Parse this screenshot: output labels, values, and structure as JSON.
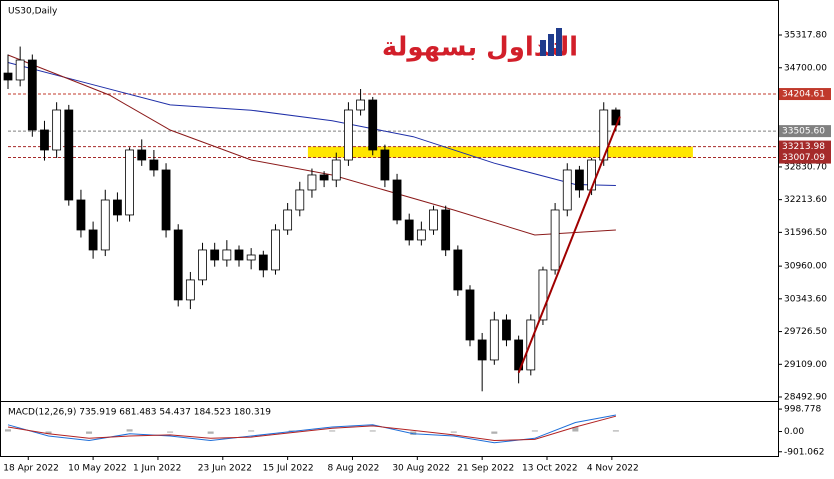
{
  "symbol": "US30,Daily",
  "watermark": "التداول بسهولة",
  "chart_data": [
    {
      "type": "candlestick",
      "color_up": "#ffffff",
      "color_down": "#000000",
      "xlim": [
        0,
        190
      ],
      "ylim": [
        28436,
        35827
      ],
      "yticks": [
        {
          "value": 35317.8,
          "label": "35317.80"
        },
        {
          "value": 34700,
          "label": "34700.00"
        },
        {
          "value": 32830.7,
          "label": "32830.70"
        },
        {
          "value": 32213.6,
          "label": "32213.60"
        },
        {
          "value": 31596.5,
          "label": "31596.50"
        },
        {
          "value": 30960,
          "label": "30960.00"
        },
        {
          "value": 30343.6,
          "label": "30343.60"
        },
        {
          "value": 29726.5,
          "label": "29726.50"
        },
        {
          "value": 29109,
          "label": "29109.00"
        },
        {
          "value": 28492.9,
          "label": "28492.90"
        }
      ],
      "x": [
        0,
        3,
        6,
        9,
        12,
        15,
        18,
        21,
        24,
        27,
        30,
        33,
        36,
        39,
        42,
        45,
        48,
        51,
        54,
        57,
        60,
        63,
        66,
        69,
        72,
        75,
        78,
        81,
        84,
        87,
        90,
        93,
        96,
        99,
        102,
        105,
        108,
        111,
        114,
        117,
        120,
        123,
        126,
        129,
        132,
        135,
        138,
        141,
        144,
        147,
        150
      ],
      "open": [
        34600,
        34470,
        34846,
        33527,
        33150,
        33904,
        32207,
        31642,
        31265,
        32207,
        31925,
        33150,
        32961,
        32773,
        31642,
        30323,
        30700,
        31265,
        31076,
        31265,
        31076,
        31170,
        30888,
        31642,
        32019,
        32396,
        32679,
        32584,
        32961,
        33904,
        34092,
        33150,
        32584,
        31830,
        31453,
        31642,
        32019,
        31265,
        30511,
        29568,
        29191,
        29945,
        29568,
        29003,
        29945,
        30888,
        32019,
        32773,
        32396,
        32961,
        33904
      ],
      "high": [
        34950,
        35100,
        34950,
        33700,
        34050,
        34000,
        32400,
        31800,
        32400,
        32350,
        33200,
        33350,
        33150,
        32900,
        31750,
        30850,
        31400,
        31400,
        31450,
        31350,
        31300,
        31250,
        31750,
        32150,
        32550,
        32800,
        32750,
        33100,
        34050,
        34300,
        34150,
        33250,
        32700,
        31950,
        31800,
        32100,
        32100,
        31350,
        30600,
        29700,
        30100,
        30050,
        29650,
        30050,
        30950,
        32150,
        32900,
        32850,
        33000,
        34050,
        33950
      ],
      "low": [
        34300,
        34350,
        33400,
        32950,
        33000,
        32100,
        31500,
        31100,
        31150,
        31800,
        31800,
        32850,
        32650,
        31500,
        30200,
        30150,
        30600,
        30950,
        30950,
        30950,
        30900,
        30750,
        30800,
        31550,
        31900,
        32250,
        32450,
        32450,
        32850,
        33800,
        33050,
        32450,
        31750,
        31350,
        31350,
        31550,
        31150,
        30400,
        29450,
        28600,
        29100,
        29450,
        28750,
        28900,
        29850,
        30800,
        31900,
        32250,
        32300,
        32850,
        33500
      ],
      "close": [
        34470,
        34846,
        33527,
        33150,
        33904,
        32207,
        31642,
        31265,
        32207,
        31925,
        33150,
        32961,
        32773,
        31642,
        30323,
        30700,
        31265,
        31076,
        31265,
        31076,
        31170,
        30888,
        31642,
        32019,
        32396,
        32679,
        32584,
        32961,
        33904,
        34092,
        33150,
        32584,
        31830,
        31453,
        31642,
        32019,
        31265,
        30511,
        29568,
        29191,
        29945,
        29568,
        29003,
        29945,
        30888,
        32019,
        32773,
        32396,
        32961,
        33904,
        33622
      ],
      "series": [
        {
          "color": "#1f2fa8",
          "x": [
            0,
            20,
            40,
            60,
            80,
            100,
            120,
            140,
            150
          ],
          "values": [
            34800,
            34400,
            34000,
            33900,
            33700,
            33400,
            32900,
            32500,
            32480
          ]
        },
        {
          "color": "#8b1a1a",
          "x": [
            0,
            25,
            40,
            60,
            80,
            110,
            130,
            150
          ],
          "values": [
            34940,
            34187,
            33527,
            32961,
            32679,
            32019,
            31547,
            31642
          ]
        }
      ],
      "levels": [
        {
          "value": 34204.61,
          "label": "34204.61",
          "color": "#c0392b"
        },
        {
          "value": 33505.6,
          "label": "33505.60",
          "color": "#808080"
        },
        {
          "value": 33213.98,
          "label": "33213.98",
          "color": "#a52a2a"
        },
        {
          "value": 33007.09,
          "label": "33007.09",
          "color": "#a52a2a"
        }
      ],
      "zone": {
        "x": [
          74,
          169
        ],
        "y": [
          33007.09,
          33213.98
        ],
        "color": "#ffe600"
      },
      "trendline": {
        "x": [
          126,
          151
        ],
        "y": [
          28950,
          33780
        ],
        "color": "#a00000"
      }
    },
    {
      "type": "line",
      "title": "MACD(12,26,9) 735.919 681.483 54.437 184.523 180.319",
      "xlim": [
        0,
        190
      ],
      "ylim": [
        -1090,
        1270
      ],
      "yticks": [
        998.778,
        {
          "value": 0,
          "label": "0.00"
        },
        -901.062
      ],
      "x": [
        0,
        10,
        20,
        30,
        40,
        50,
        60,
        70,
        80,
        90,
        100,
        110,
        120,
        130,
        140,
        150
      ],
      "series": [
        {
          "color": "#1e6fd9",
          "values": [
            300,
            -200,
            -400,
            -100,
            -200,
            -400,
            -200,
            0,
            200,
            300,
            -100,
            -200,
            -500,
            -300,
            400,
            736
          ]
        },
        {
          "color": "#b22222",
          "values": [
            200,
            -100,
            -300,
            -200,
            -150,
            -300,
            -250,
            -50,
            150,
            250,
            50,
            -150,
            -400,
            -350,
            200,
            681
          ]
        }
      ],
      "histogram": {
        "color": "#b0b0b0",
        "values": [
          100,
          -100,
          -100,
          100,
          -50,
          -100,
          50,
          50,
          50,
          50,
          -150,
          -50,
          -100,
          50,
          200,
          54
        ]
      },
      "xticks": [
        {
          "value": 5,
          "label": "18 Apr 2022"
        },
        {
          "value": 21,
          "label": "10 May 2022"
        },
        {
          "value": 37,
          "label": "1 Jun 2022"
        },
        {
          "value": 53,
          "label": "23 Jun 2022"
        },
        {
          "value": 69,
          "label": "15 Jul 2022"
        },
        {
          "value": 85,
          "label": "8 Aug 2022"
        },
        {
          "value": 101,
          "label": "30 Aug 2022"
        },
        {
          "value": 117,
          "label": "21 Sep 2022"
        },
        {
          "value": 133,
          "label": "13 Oct 2022"
        },
        {
          "value": 149,
          "label": "4 Nov 2022"
        }
      ]
    }
  ]
}
